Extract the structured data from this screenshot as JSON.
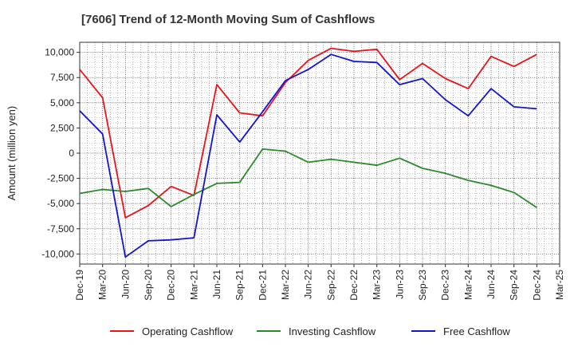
{
  "chart_data": {
    "type": "line",
    "title": "[7606]  Trend of 12-Month Moving Sum of Cashflows",
    "xlabel": "",
    "ylabel": "Amount (million yen)",
    "ylim": [
      -11000,
      11000
    ],
    "yticks": [
      10000,
      7500,
      5000,
      2500,
      0,
      -2500,
      -5000,
      -7500,
      -10000
    ],
    "ytick_labels": [
      "10,000",
      "7,500",
      "5,000",
      "2,500",
      "0",
      "-2,500",
      "-5,000",
      "-7,500",
      "-10,000"
    ],
    "x_tick_labels": [
      "Dec-19",
      "Mar-20",
      "Jun-20",
      "Sep-20",
      "Dec-20",
      "Mar-21",
      "Jun-21",
      "Sep-21",
      "Dec-21",
      "Mar-22",
      "Jun-22",
      "Sep-22",
      "Dec-22",
      "Mar-23",
      "Jun-23",
      "Sep-23",
      "Dec-23",
      "Mar-24",
      "Jun-24",
      "Sep-24",
      "Dec-24",
      "Mar-25"
    ],
    "grid": true,
    "legend_position": "bottom",
    "series": [
      {
        "name": "Operating Cashflow",
        "color": "#e8141a",
        "values": [
          8300,
          5500,
          -6400,
          -5200,
          -3300,
          -4200,
          6800,
          4000,
          3700,
          7000,
          9200,
          10400,
          10100,
          10300,
          7300,
          8900,
          7400,
          6400,
          9600,
          8600,
          9800
        ]
      },
      {
        "name": "Investing Cashflow",
        "color": "#2a8a2a",
        "values": [
          -4000,
          -3600,
          -3800,
          -3500,
          -5300,
          -4100,
          -3000,
          -2900,
          400,
          200,
          -900,
          -600,
          -900,
          -1200,
          -500,
          -1500,
          -2000,
          -2700,
          -3200,
          -3900,
          -5400
        ]
      },
      {
        "name": "Free Cashflow",
        "color": "#1414cc",
        "values": [
          4200,
          1900,
          -10300,
          -8700,
          -8600,
          -8400,
          3800,
          1100,
          4100,
          7200,
          8300,
          9800,
          9100,
          9000,
          6800,
          7400,
          5300,
          3700,
          6400,
          4600,
          4400
        ]
      }
    ]
  }
}
